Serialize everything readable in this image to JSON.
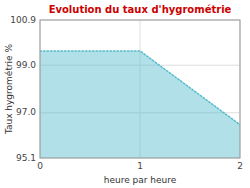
{
  "chart_data": {
    "type": "area",
    "title": "Evolution du taux d'hygrométrie",
    "x_label": "heure par heure",
    "y_label": "Taux hygrométrie %",
    "x": [
      0,
      1,
      2
    ],
    "values": [
      99.6,
      99.6,
      96.5
    ],
    "color": "#55bbcc",
    "line_style": "dotted",
    "xlim": [
      0,
      2
    ],
    "ylim": [
      95.1,
      100.9
    ],
    "xticks": [
      0,
      1,
      2
    ],
    "yticks": [
      95.1,
      {
        "value": 97.0,
        "label": "97.0"
      },
      {
        "value": 99.0,
        "label": "99.0"
      },
      100.9
    ],
    "grid": true
  }
}
